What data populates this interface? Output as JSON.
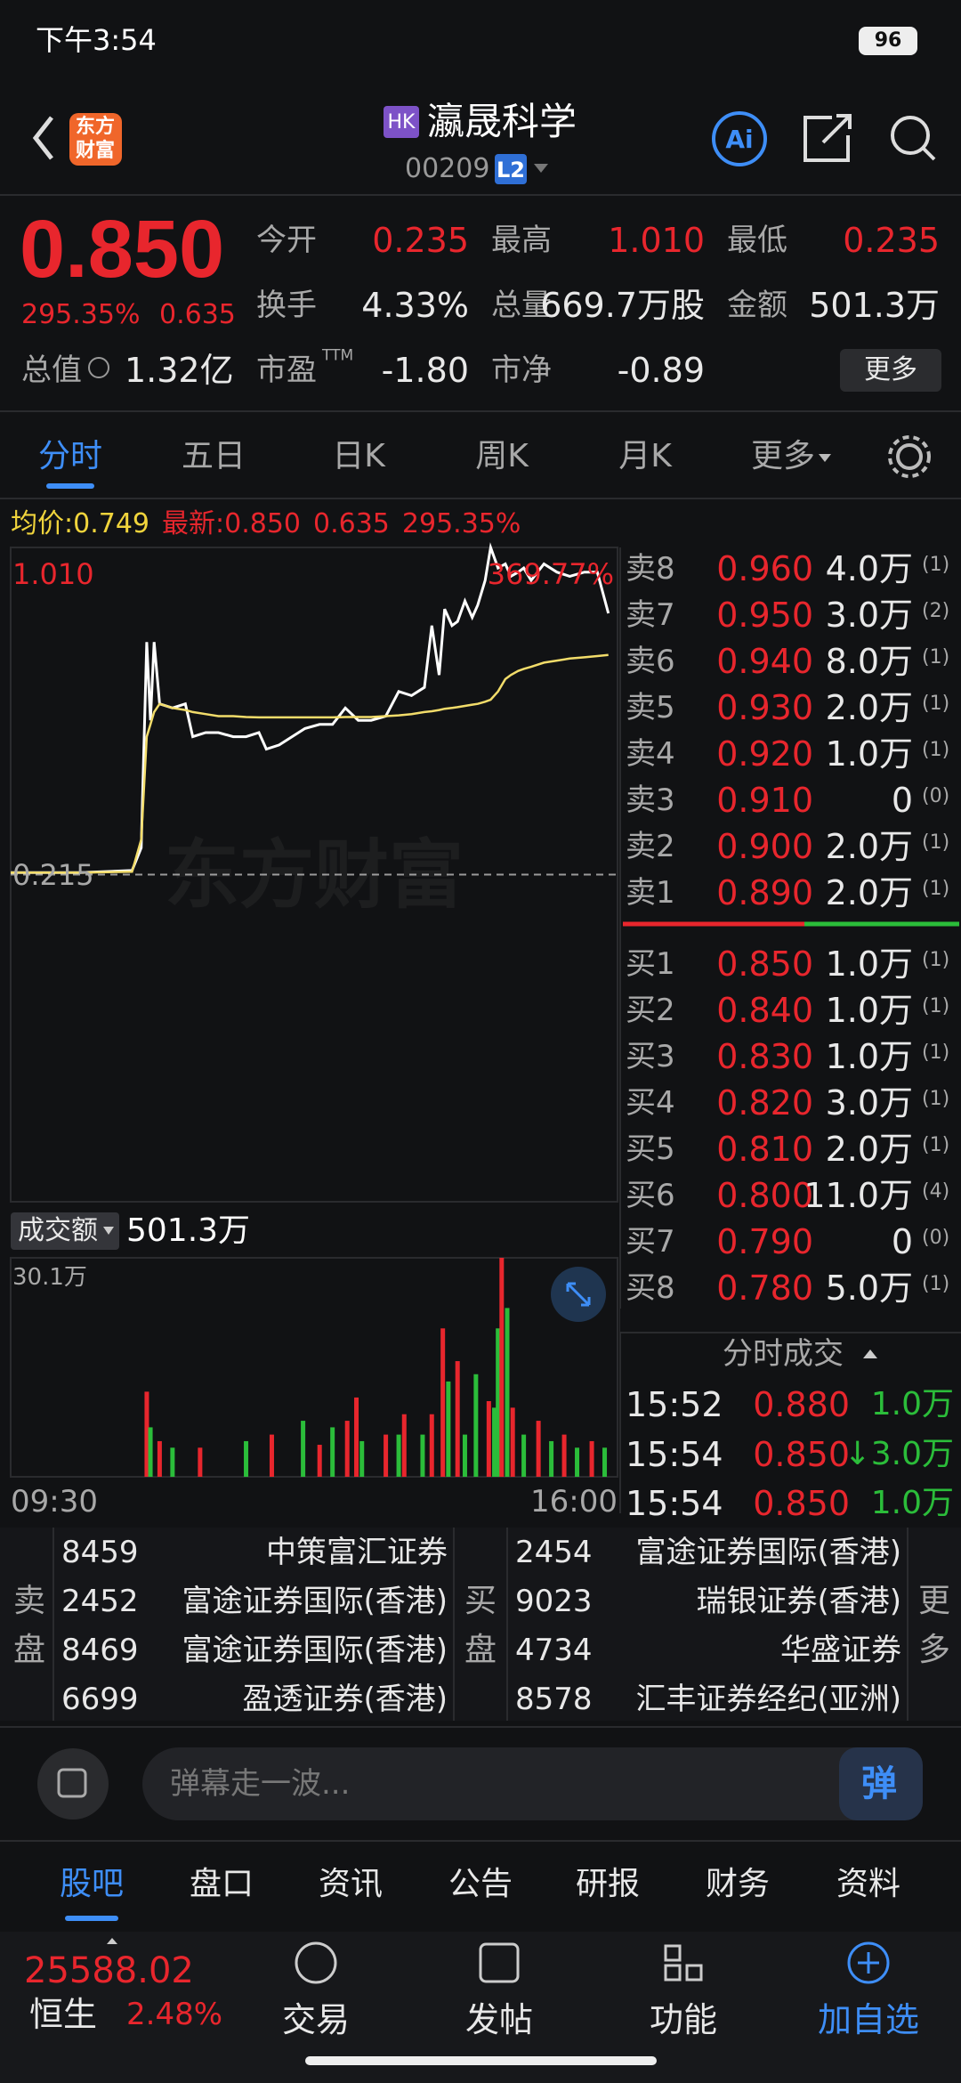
{
  "status_bar": {
    "time": "下午3:54",
    "battery": "96"
  },
  "header": {
    "logo": [
      "东方",
      "财富"
    ],
    "market": "HK",
    "name": "瀛晟科学",
    "code": "00209",
    "level": "L2"
  },
  "quote": {
    "price": "0.850",
    "change_pct": "295.35%",
    "change": "0.635",
    "stats": [
      [
        {
          "label": "今开",
          "value": "0.235"
        },
        {
          "label": "最高",
          "value": "1.010"
        },
        {
          "label": "最低",
          "value": "0.235"
        }
      ],
      [
        {
          "label": "换手",
          "value": "4.33%"
        },
        {
          "label": "总量",
          "value": "669.7万股"
        },
        {
          "label": "金额",
          "value": "501.3万"
        }
      ],
      [
        {
          "label": "市盈",
          "sup": "TTM",
          "value": "-1.80"
        },
        {
          "label": "市净",
          "value": "-0.89"
        }
      ]
    ],
    "total": {
      "label": "总值",
      "value": "1.32亿"
    },
    "more": "更多"
  },
  "tabs": [
    "分时",
    "五日",
    "日K",
    "周K",
    "月K"
  ],
  "tab_more": "更多",
  "chart_info": {
    "avg_label": "均价:",
    "avg": "0.749",
    "latest_label": "最新:",
    "latest": "0.850",
    "change": "0.635",
    "change_pct": "295.35%"
  },
  "intraday": {
    "type": "line",
    "x": [
      0,
      38,
      66,
      71,
      74,
      76,
      78,
      81,
      88,
      95,
      99,
      106,
      113,
      121,
      128,
      135,
      139,
      146,
      153,
      160,
      168,
      175,
      182,
      189,
      196,
      204,
      211,
      218,
      225,
      229,
      233,
      236,
      240,
      243,
      247,
      251,
      254,
      258,
      261,
      265,
      269,
      272,
      276,
      279,
      283,
      290,
      297,
      304,
      312,
      319,
      325
    ],
    "series": [
      {
        "color": "#ffffff",
        "values": [
          0.22,
          0.22,
          0.225,
          0.28,
          0.78,
          0.59,
          0.78,
          0.63,
          0.62,
          0.63,
          0.55,
          0.56,
          0.56,
          0.55,
          0.55,
          0.56,
          0.52,
          0.53,
          0.55,
          0.57,
          0.58,
          0.58,
          0.62,
          0.59,
          0.59,
          0.6,
          0.66,
          0.65,
          0.67,
          0.82,
          0.7,
          0.86,
          0.82,
          0.83,
          0.88,
          0.84,
          0.87,
          0.93,
          1.01,
          0.96,
          0.97,
          0.94,
          0.95,
          0.96,
          0.93,
          0.97,
          0.95,
          0.94,
          0.95,
          0.95,
          0.85
        ]
      },
      {
        "color": "#f2dc6a",
        "values": [
          0.22,
          0.22,
          0.222,
          0.3,
          0.55,
          0.58,
          0.61,
          0.63,
          0.62,
          0.615,
          0.61,
          0.605,
          0.6,
          0.6,
          0.598,
          0.597,
          0.597,
          0.597,
          0.597,
          0.597,
          0.597,
          0.597,
          0.598,
          0.598,
          0.598,
          0.6,
          0.602,
          0.605,
          0.61,
          0.612,
          0.615,
          0.618,
          0.62,
          0.622,
          0.625,
          0.628,
          0.63,
          0.635,
          0.64,
          0.66,
          0.69,
          0.7,
          0.71,
          0.715,
          0.72,
          0.73,
          0.735,
          0.74,
          0.743,
          0.746,
          0.749
        ]
      }
    ],
    "xlim": [
      0,
      330
    ],
    "xticks": [
      {
        "value": 0,
        "label": "09:30"
      },
      {
        "value": 330,
        "label": "16:00"
      }
    ],
    "ylim": [
      -0.58,
      1.01
    ],
    "yticks": [
      {
        "value": 1.01,
        "label": "1.010"
      },
      {
        "value": 0.215,
        "label": "0.215"
      }
    ],
    "top_pct": "369.77%",
    "watermark": "东方财富"
  },
  "volume": {
    "type": "bar",
    "label": "成交额",
    "total": "501.3万",
    "x": [
      74,
      76,
      81,
      88,
      103,
      128,
      142,
      159,
      168,
      175,
      183,
      188,
      191,
      204,
      211,
      214,
      224,
      229,
      235,
      238,
      243,
      247,
      253,
      260,
      263,
      265,
      267,
      270,
      273,
      279,
      287,
      294,
      301,
      308,
      316,
      323
    ],
    "values": [
      11.7,
      6.8,
      4.9,
      4.0,
      4.0,
      4.9,
      5.8,
      7.7,
      4.4,
      6.8,
      7.7,
      10.9,
      4.9,
      5.8,
      5.8,
      8.6,
      5.8,
      8.6,
      20.4,
      13.1,
      15.9,
      5.8,
      14.1,
      10.4,
      9.5,
      20.4,
      30.1,
      23.2,
      9.5,
      5.8,
      7.7,
      4.9,
      5.8,
      4.0,
      4.9,
      4.0
    ],
    "colors": [
      "#e8262d",
      "#2bbd3a",
      "#e8262d",
      "#2bbd3a",
      "#e8262d",
      "#2bbd3a",
      "#e8262d",
      "#2bbd3a",
      "#e8262d",
      "#2bbd3a",
      "#e8262d",
      "#e8262d",
      "#2bbd3a",
      "#e8262d",
      "#2bbd3a",
      "#e8262d",
      "#2bbd3a",
      "#e8262d",
      "#e8262d",
      "#2bbd3a",
      "#e8262d",
      "#2bbd3a",
      "#2bbd3a",
      "#e8262d",
      "#2bbd3a",
      "#2bbd3a",
      "#e8262d",
      "#2bbd3a",
      "#e8262d",
      "#2bbd3a",
      "#e8262d",
      "#2bbd3a",
      "#e8262d",
      "#2bbd3a",
      "#e8262d",
      "#2bbd3a"
    ],
    "ylim": [
      0,
      30.1
    ],
    "yticks": [
      {
        "value": 30.1,
        "label": "30.1万"
      }
    ]
  },
  "order_book": {
    "asks": [
      {
        "label": "卖8",
        "price": "0.960",
        "volume": "4.0万",
        "count": "(1)"
      },
      {
        "label": "卖7",
        "price": "0.950",
        "volume": "3.0万",
        "count": "(2)"
      },
      {
        "label": "卖6",
        "price": "0.940",
        "volume": "8.0万",
        "count": "(1)"
      },
      {
        "label": "卖5",
        "price": "0.930",
        "volume": "2.0万",
        "count": "(1)"
      },
      {
        "label": "卖4",
        "price": "0.920",
        "volume": "1.0万",
        "count": "(1)"
      },
      {
        "label": "卖3",
        "price": "0.910",
        "volume": "0",
        "count": "(0)"
      },
      {
        "label": "卖2",
        "price": "0.900",
        "volume": "2.0万",
        "count": "(1)"
      },
      {
        "label": "卖1",
        "price": "0.890",
        "volume": "2.0万",
        "count": "(1)"
      }
    ],
    "bids": [
      {
        "label": "买1",
        "price": "0.850",
        "volume": "1.0万",
        "count": "(1)"
      },
      {
        "label": "买2",
        "price": "0.840",
        "volume": "1.0万",
        "count": "(1)"
      },
      {
        "label": "买3",
        "price": "0.830",
        "volume": "1.0万",
        "count": "(1)"
      },
      {
        "label": "买4",
        "price": "0.820",
        "volume": "3.0万",
        "count": "(1)"
      },
      {
        "label": "买5",
        "price": "0.810",
        "volume": "2.0万",
        "count": "(1)"
      },
      {
        "label": "买6",
        "price": "0.800",
        "volume": "11.0万",
        "count": "(4)"
      },
      {
        "label": "买7",
        "price": "0.790",
        "volume": "0",
        "count": "(0)"
      },
      {
        "label": "买8",
        "price": "0.780",
        "volume": "5.0万",
        "count": "(1)"
      }
    ]
  },
  "trades": {
    "title": "分时成交",
    "rows": [
      {
        "time": "15:52",
        "price": "0.880",
        "volume": "1.0万"
      },
      {
        "time": "15:54",
        "price": "0.850",
        "volume": "↓3.0万"
      },
      {
        "time": "15:54",
        "price": "0.850",
        "volume": "1.0万"
      }
    ]
  },
  "brokers": {
    "sell_label": [
      "卖",
      "盘"
    ],
    "buy_label": [
      "买",
      "盘"
    ],
    "more": [
      "更",
      "多"
    ],
    "sell": [
      {
        "code": "8459",
        "name": "中策富汇证券"
      },
      {
        "code": "2452",
        "name": "富途证券国际(香港)"
      },
      {
        "code": "8469",
        "name": "富途证券国际(香港)"
      },
      {
        "code": "6699",
        "name": "盈透证券(香港)"
      }
    ],
    "buy": [
      {
        "code": "2454",
        "name": "富途证券国际(香港)"
      },
      {
        "code": "9023",
        "name": "瑞银证券(香港)"
      },
      {
        "code": "4734",
        "name": "华盛证券"
      },
      {
        "code": "8578",
        "name": "汇丰证券经纪(亚洲)"
      }
    ]
  },
  "comment": {
    "placeholder": "弹幕走一波...",
    "button": "弹"
  },
  "bottom_tabs": [
    "股吧",
    "盘口",
    "资讯",
    "公告",
    "研报",
    "财务",
    "资料"
  ],
  "index": {
    "value": "25588.02",
    "name": "恒生",
    "change_pct": "2.48%"
  },
  "nav": [
    "交易",
    "发帖",
    "功能",
    "加自选"
  ]
}
